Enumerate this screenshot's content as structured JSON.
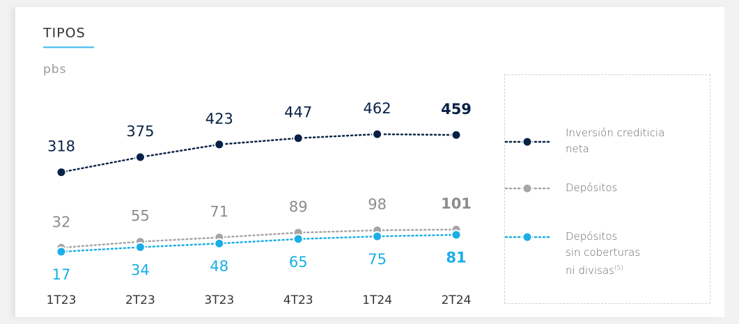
{
  "chart_data": {
    "type": "line",
    "title": "TIPOS",
    "subtitle": "pbs",
    "categories": [
      "1T23",
      "2T23",
      "3T23",
      "4T23",
      "1T24",
      "2T24"
    ],
    "series": [
      {
        "name": "Inversión crediticia\nneta",
        "color": "#072146",
        "label_color": "#072146",
        "label_side": "above",
        "values": [
          318,
          375,
          423,
          447,
          462,
          459
        ]
      },
      {
        "name": "Depósitos",
        "color": "#a5a5a5",
        "label_color": "#8c8c8c",
        "label_side": "above",
        "values": [
          32,
          55,
          71,
          89,
          98,
          101
        ]
      },
      {
        "name": "Depósitos\nsin coberturas\nni divisas",
        "footnote": "(5)",
        "color": "#1aaee6",
        "label_color": "#1aaee6",
        "label_side": "below",
        "values": [
          17,
          34,
          48,
          65,
          75,
          81
        ]
      }
    ]
  }
}
